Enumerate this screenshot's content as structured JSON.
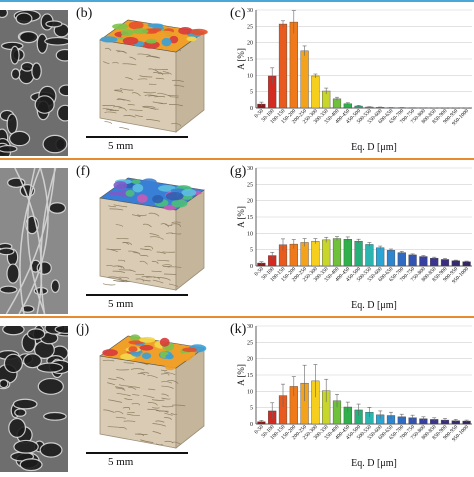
{
  "colors": {
    "rule_top": "#4aa8d8",
    "rule_mid": "#e88a2e",
    "rule_bottom": "#e88a2e",
    "bar_palette": [
      "#8b1a1a",
      "#d42a1f",
      "#e85a1e",
      "#f07a1a",
      "#f3a21c",
      "#f6cf1d",
      "#c8d62a",
      "#6fc13c",
      "#2fb04a",
      "#25b07a",
      "#2cb5b0",
      "#2aa6d6",
      "#2e86cf",
      "#2f6bc3",
      "#3353b3",
      "#37409e",
      "#3b3590",
      "#3a2d7f",
      "#382a70",
      "#352565"
    ]
  },
  "rows": [
    {
      "labels": {
        "left": "(b)",
        "chart": "(c)"
      },
      "scale_label": "5 mm",
      "cube_top": "grain-map-orange",
      "chart_data": {
        "type": "bar",
        "xlabel": "Eq. D [μm]",
        "ylabel": "A [%]",
        "ylim": [
          0,
          30
        ],
        "yticks": [
          0,
          5,
          10,
          15,
          20,
          25,
          30
        ],
        "grid": true,
        "categories": [
          "0-50",
          "50-100",
          "100-150",
          "150-200",
          "200-250",
          "250-300",
          "300-350",
          "350-400",
          "400-450",
          "450-500",
          "500-550",
          "550-600",
          "600-650",
          "650-700",
          "700-750",
          "750-800",
          "800-850",
          "850-900",
          "900-950",
          "950-1000"
        ],
        "values": [
          1.2,
          9.8,
          25.7,
          26.3,
          17.5,
          9.8,
          5.2,
          2.8,
          1.3,
          0.6,
          0.3,
          0.2,
          0.1,
          0.1,
          0.05,
          0.05,
          0.03,
          0.02,
          0.02,
          0.02
        ],
        "errors": [
          0.6,
          2.5,
          1.0,
          3.5,
          1.5,
          0.6,
          0.9,
          0.5,
          0.3,
          0.2,
          0.1,
          0.1,
          0.05,
          0.05,
          0.05,
          0.03,
          0.03,
          0.02,
          0.02,
          0.02
        ]
      }
    },
    {
      "labels": {
        "left": "(f)",
        "chart": "(g)"
      },
      "scale_label": "5 mm",
      "cube_top": "grain-map-blue",
      "chart_data": {
        "type": "bar",
        "xlabel": "Eq. D [μm]",
        "ylabel": "A [%]",
        "ylim": [
          0,
          30
        ],
        "yticks": [
          0,
          5,
          10,
          15,
          20,
          25,
          30
        ],
        "grid": true,
        "categories": [
          "0-50",
          "50-100",
          "100-150",
          "150-200",
          "200-250",
          "250-300",
          "300-350",
          "350-400",
          "400-450",
          "450-500",
          "500-550",
          "550-600",
          "600-650",
          "650-700",
          "700-750",
          "750-800",
          "800-850",
          "850-900",
          "900-950",
          "950-1000"
        ],
        "values": [
          0.9,
          3.2,
          6.5,
          6.7,
          7.2,
          7.6,
          8.0,
          8.4,
          8.2,
          7.6,
          6.6,
          5.6,
          4.8,
          4.1,
          3.4,
          2.9,
          2.4,
          2.0,
          1.6,
          1.3
        ],
        "errors": [
          0.4,
          1.0,
          1.8,
          1.4,
          1.2,
          0.8,
          0.8,
          0.6,
          0.7,
          0.6,
          0.6,
          0.5,
          0.4,
          0.4,
          0.3,
          0.3,
          0.3,
          0.3,
          0.2,
          0.2
        ]
      }
    },
    {
      "labels": {
        "left": "(j)",
        "chart": "(k)"
      },
      "scale_label": "5 mm",
      "cube_top": "grain-map-orange",
      "chart_data": {
        "type": "bar",
        "xlabel": "Eq. D [μm]",
        "ylabel": "A [%]",
        "ylim": [
          0,
          30
        ],
        "yticks": [
          0,
          5,
          10,
          15,
          20,
          25,
          30
        ],
        "grid": true,
        "categories": [
          "0-50",
          "50-100",
          "100-150",
          "150-200",
          "200-250",
          "250-300",
          "300-350",
          "350-400",
          "400-450",
          "450-500",
          "500-550",
          "550-600",
          "600-650",
          "650-700",
          "700-750",
          "750-800",
          "800-850",
          "850-900",
          "900-950",
          "950-1000"
        ],
        "values": [
          0.7,
          4.0,
          8.7,
          11.5,
          12.5,
          13.2,
          10.2,
          7.1,
          5.2,
          4.3,
          3.6,
          2.8,
          2.6,
          2.2,
          1.9,
          1.6,
          1.4,
          1.2,
          1.0,
          0.9
        ],
        "errors": [
          0.4,
          2.5,
          3.5,
          3.0,
          5.5,
          5.0,
          3.5,
          2.0,
          1.5,
          1.8,
          1.5,
          1.2,
          1.0,
          0.8,
          0.8,
          0.6,
          0.5,
          0.5,
          0.4,
          0.3
        ]
      }
    }
  ]
}
